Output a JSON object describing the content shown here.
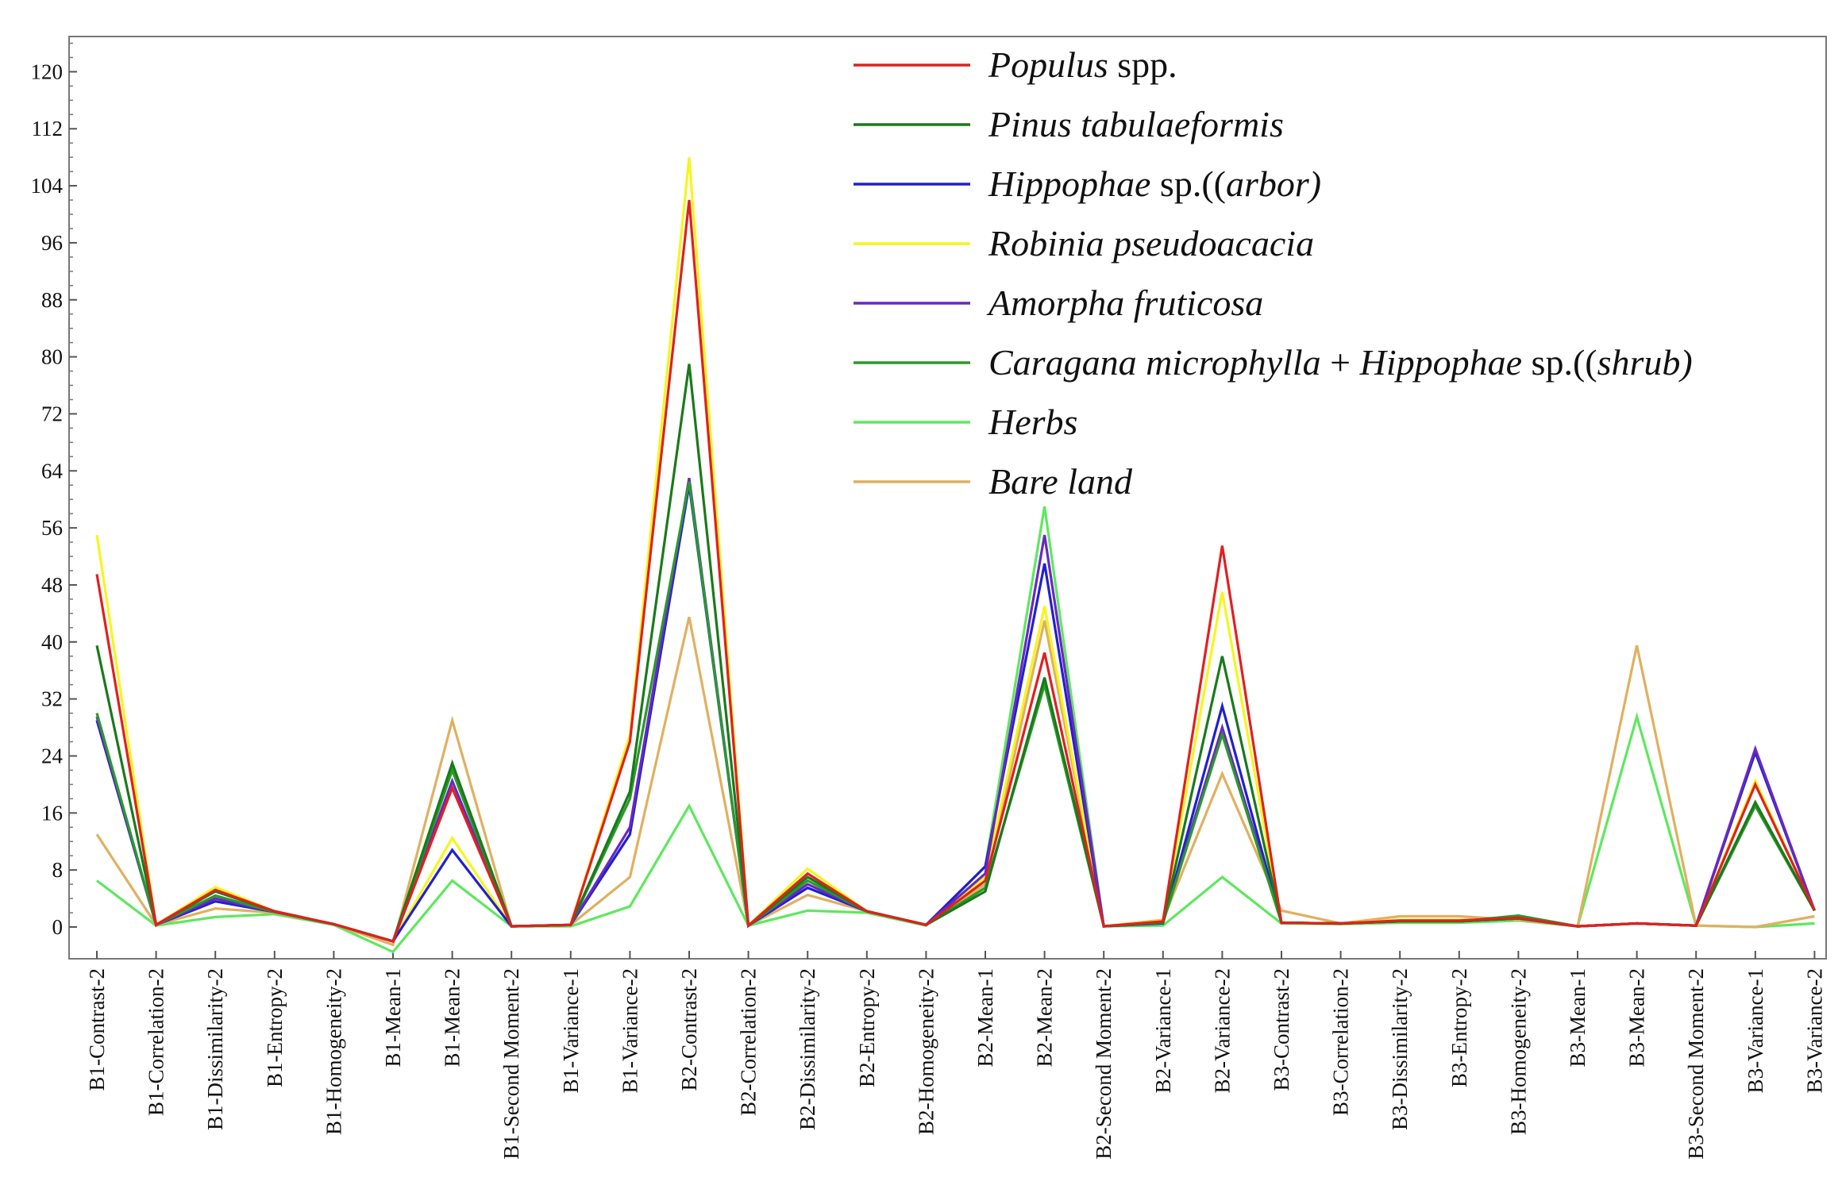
{
  "chart_data": {
    "type": "line",
    "title": "",
    "xlabel": "",
    "ylabel": "",
    "ylim": [
      -3,
      126
    ],
    "yticks": [
      0,
      8,
      16,
      24,
      32,
      40,
      48,
      56,
      64,
      72,
      80,
      88,
      96,
      104,
      112,
      120
    ],
    "grid": false,
    "legend_position": "top-right",
    "categories": [
      "B1-Contrast-2",
      "B1-Correlation-2",
      "B1-Dissimilarity-2",
      "B1-Entropy-2",
      "B1-Homogeneity-2",
      "B1-Mean-1",
      "B1-Mean-2",
      "B1-Second Moment-2",
      "B1-Variance-1",
      "B1-Variance-2",
      "B2-Contrast-2",
      "B2-Correlation-2",
      "B2-Dissimilarity-2",
      "B2-Entropy-2",
      "B2-Homogeneity-2",
      "B2-Mean-1",
      "B2-Mean-2",
      "B2-Second Moment-2",
      "B2-Variance-1",
      "B2-Variance-2",
      "B3-Contrast-2",
      "B3-Correlation-2",
      "B3-Dissimilarity-2",
      "B3-Entropy-2",
      "B3-Homogeneity-2",
      "B3-Mean-1",
      "B3-Mean-2",
      "B3-Second Moment-2",
      "B3-Variance-1",
      "B3-Variance-2"
    ],
    "series": [
      {
        "name": "Populus spp.",
        "label_parts": [
          {
            "text": "Populus",
            "italic": true
          },
          {
            "text": " spp.",
            "italic": false
          }
        ],
        "color": "#e02020",
        "values": [
          49.5,
          0.3,
          5.2,
          2.2,
          0.4,
          -2,
          19.5,
          0.1,
          0.3,
          26,
          102,
          0.2,
          7.5,
          2.2,
          0.3,
          6.5,
          38.5,
          0.1,
          0.8,
          53.5,
          0.6,
          0.5,
          0.9,
          0.9,
          1.3,
          0.1,
          0.5,
          0.2,
          20,
          2.4
        ]
      },
      {
        "name": "Pinus tabulaeformis",
        "label_parts": [
          {
            "text": "Pinus tabulaeformis",
            "italic": true
          }
        ],
        "color": "#1a7a1a",
        "values": [
          39.5,
          0.3,
          5,
          2.2,
          0.4,
          -2,
          23,
          0.1,
          0.3,
          19,
          79,
          0.2,
          7,
          2.2,
          0.3,
          5,
          35,
          0.1,
          0.7,
          38,
          0.6,
          0.5,
          0.8,
          0.8,
          1.2,
          0.1,
          0.5,
          0.2,
          17.5,
          2.3
        ]
      },
      {
        "name": "Hippophae sp.((arbor)",
        "label_parts": [
          {
            "text": "Hippophae",
            "italic": true
          },
          {
            "text": " sp.((",
            "italic": false
          },
          {
            "text": "arbor)",
            "italic": true
          }
        ],
        "color": "#2020d0",
        "values": [
          29,
          0.3,
          3.6,
          2.1,
          0.4,
          -2,
          10.8,
          0.1,
          0.3,
          13,
          62,
          0.2,
          5.5,
          2.2,
          0.3,
          8.5,
          51,
          0.1,
          0.5,
          31,
          0.6,
          0.5,
          0.8,
          0.8,
          1.2,
          0.1,
          0.5,
          0.2,
          24.5,
          2.3
        ]
      },
      {
        "name": "Robinia pseudoacacia",
        "label_parts": [
          {
            "text": "Robinia pseudoacacia",
            "italic": true
          }
        ],
        "color": "#f5f520",
        "values": [
          55,
          0.3,
          5.6,
          2.2,
          0.4,
          -2,
          12.5,
          0.1,
          0.3,
          27,
          108,
          0.2,
          8.2,
          2.2,
          0.3,
          7,
          45,
          0.1,
          0.9,
          47,
          0.6,
          0.5,
          1,
          1,
          1.2,
          0.1,
          0.5,
          0.2,
          20.5,
          2.3
        ]
      },
      {
        "name": "Amorpha fruticosa",
        "label_parts": [
          {
            "text": "Amorpha fruticosa",
            "italic": true
          }
        ],
        "color": "#6a28c0",
        "values": [
          29.5,
          0.3,
          4,
          2.1,
          0.4,
          -2,
          20.5,
          0.1,
          0.3,
          14,
          63,
          0.2,
          6,
          2.2,
          0.3,
          7.5,
          55,
          0.1,
          0.6,
          28,
          0.6,
          0.5,
          0.8,
          0.8,
          1.2,
          0.1,
          0.5,
          0.2,
          25,
          2.3
        ]
      },
      {
        "name": "Caragana microphylla + Hippophae sp.((shrub)",
        "label_parts": [
          {
            "text": "Caragana microphylla",
            "italic": true
          },
          {
            "text": " + ",
            "italic": false
          },
          {
            "text": "Hippophae",
            "italic": true
          },
          {
            "text": " sp.((",
            "italic": false
          },
          {
            "text": "shrub)",
            "italic": true
          }
        ],
        "color": "#2a9a2a",
        "values": [
          30,
          0.3,
          4.4,
          2.1,
          0.4,
          -2,
          22,
          0.1,
          0.3,
          18,
          62.5,
          0.2,
          6.5,
          2.2,
          0.3,
          5.5,
          34,
          0.1,
          0.6,
          27,
          0.6,
          0.5,
          0.8,
          0.8,
          1.6,
          0.1,
          0.5,
          0.2,
          17,
          2.3
        ]
      },
      {
        "name": "Herbs",
        "label_parts": [
          {
            "text": "Herbs",
            "italic": true
          }
        ],
        "color": "#5ee85e",
        "values": [
          6.5,
          0.2,
          1.4,
          1.8,
          0.3,
          -3.5,
          6.5,
          0.1,
          0.1,
          2.9,
          17,
          0.2,
          2.3,
          2,
          0.2,
          8.5,
          59,
          0.1,
          0.2,
          7,
          0.5,
          0.4,
          0.6,
          0.6,
          0.9,
          0.1,
          29.5,
          0.2,
          0,
          0.5
        ]
      },
      {
        "name": "Bare land",
        "label_parts": [
          {
            "text": "Bare land",
            "italic": true
          }
        ],
        "color": "#e0b060",
        "values": [
          13,
          0.3,
          2.6,
          2,
          0.4,
          -2.5,
          29,
          0.1,
          0.3,
          7,
          43.5,
          0.2,
          4.5,
          2.2,
          0.3,
          6,
          43,
          0.1,
          1,
          21.5,
          2.3,
          0.5,
          1.5,
          1.5,
          1,
          0.1,
          39.5,
          0.2,
          0,
          1.5
        ]
      }
    ]
  }
}
